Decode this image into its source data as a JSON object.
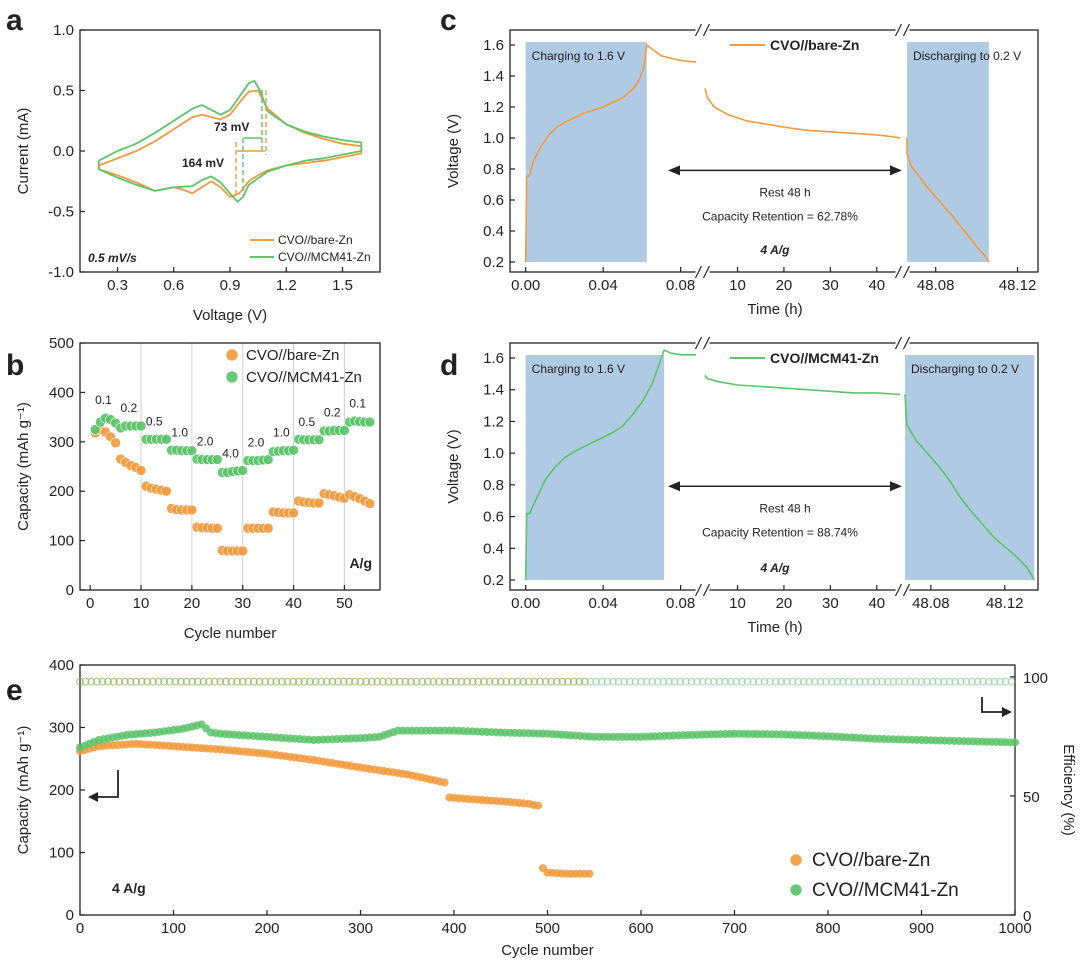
{
  "colors": {
    "orange": "#f39a3c",
    "green": "#5cc46a",
    "shade": "#a9c4e0",
    "axis": "#222222"
  },
  "panel_labels": {
    "a": "a",
    "b": "b",
    "c": "c",
    "d": "d",
    "e": "e"
  },
  "chart_data": [
    {
      "panel": "a",
      "type": "line",
      "xlabel": "Voltage (V)",
      "ylabel": "Current (mA)",
      "xlim": [
        0.1,
        1.7
      ],
      "ylim": [
        -1.0,
        1.0
      ],
      "xticks": [
        "0.3",
        "0.6",
        "0.9",
        "1.2",
        "1.5"
      ],
      "yticks": [
        "-1.0",
        "-0.5",
        "0.0",
        "0.5",
        "1.0"
      ],
      "annotations": [
        "73 mV",
        "164 mV",
        "0.5 mV/s"
      ],
      "legend_position": "bottom-right",
      "series": [
        {
          "name": "CVO//bare-Zn",
          "color": "orange",
          "x": [
            0.2,
            0.3,
            0.4,
            0.5,
            0.6,
            0.7,
            0.75,
            0.8,
            0.85,
            0.9,
            0.95,
            1.0,
            1.05,
            1.1,
            1.2,
            1.3,
            1.4,
            1.5,
            1.6,
            1.6,
            1.5,
            1.4,
            1.3,
            1.2,
            1.1,
            1.05,
            1.0,
            0.95,
            0.9,
            0.85,
            0.8,
            0.75,
            0.7,
            0.65,
            0.6,
            0.5,
            0.4,
            0.3,
            0.2
          ],
          "y": [
            -0.12,
            -0.06,
            0.0,
            0.08,
            0.18,
            0.28,
            0.3,
            0.28,
            0.26,
            0.3,
            0.4,
            0.49,
            0.5,
            0.35,
            0.22,
            0.15,
            0.1,
            0.06,
            0.04,
            -0.02,
            -0.05,
            -0.08,
            -0.1,
            -0.12,
            -0.16,
            -0.2,
            -0.25,
            -0.35,
            -0.38,
            -0.3,
            -0.25,
            -0.3,
            -0.35,
            -0.32,
            -0.3,
            -0.33,
            -0.26,
            -0.2,
            -0.15
          ]
        },
        {
          "name": "CVO//MCM41-Zn",
          "color": "green",
          "x": [
            0.2,
            0.3,
            0.4,
            0.5,
            0.6,
            0.7,
            0.75,
            0.8,
            0.85,
            0.9,
            0.95,
            1.0,
            1.03,
            1.06,
            1.1,
            1.2,
            1.3,
            1.4,
            1.5,
            1.6,
            1.6,
            1.5,
            1.4,
            1.3,
            1.2,
            1.1,
            1.0,
            0.97,
            0.94,
            0.9,
            0.85,
            0.8,
            0.75,
            0.7,
            0.6,
            0.5,
            0.4,
            0.3,
            0.2
          ],
          "y": [
            -0.08,
            0.0,
            0.06,
            0.15,
            0.25,
            0.35,
            0.38,
            0.34,
            0.3,
            0.34,
            0.45,
            0.56,
            0.58,
            0.5,
            0.33,
            0.22,
            0.16,
            0.12,
            0.09,
            0.07,
            0.0,
            -0.03,
            -0.06,
            -0.08,
            -0.12,
            -0.17,
            -0.28,
            -0.38,
            -0.42,
            -0.35,
            -0.26,
            -0.21,
            -0.24,
            -0.29,
            -0.3,
            -0.33,
            -0.28,
            -0.22,
            -0.15
          ]
        }
      ]
    },
    {
      "panel": "b",
      "type": "scatter",
      "xlabel": "Cycle number",
      "ylabel": "Capacity (mAh g⁻¹)",
      "xlim": [
        -2,
        57
      ],
      "ylim": [
        0,
        500
      ],
      "xticks": [
        "0",
        "10",
        "20",
        "30",
        "40",
        "50"
      ],
      "yticks": [
        "0",
        "100",
        "200",
        "300",
        "400",
        "500"
      ],
      "unit_label": "A/g",
      "rate_labels": [
        "0.1",
        "0.2",
        "0.5",
        "1.0",
        "2.0",
        "4.0",
        "2.0",
        "1.0",
        "0.5",
        "0.2",
        "0.1"
      ],
      "legend_position": "top-right",
      "series": [
        {
          "name": "CVO//bare-Zn",
          "color": "orange",
          "x": [
            1,
            2,
            3,
            4,
            5,
            6,
            7,
            8,
            9,
            10,
            11,
            12,
            13,
            14,
            15,
            16,
            17,
            18,
            19,
            20,
            21,
            22,
            23,
            24,
            25,
            26,
            27,
            28,
            29,
            30,
            31,
            32,
            33,
            34,
            35,
            36,
            37,
            38,
            39,
            40,
            41,
            42,
            43,
            44,
            45,
            46,
            47,
            48,
            49,
            50,
            51,
            52,
            53,
            54,
            55
          ],
          "y": [
            318,
            325,
            320,
            310,
            298,
            265,
            258,
            252,
            248,
            242,
            210,
            206,
            204,
            202,
            200,
            165,
            163,
            162,
            162,
            162,
            127,
            126,
            126,
            125,
            125,
            80,
            79,
            79,
            79,
            79,
            125,
            125,
            125,
            125,
            125,
            158,
            157,
            156,
            156,
            156,
            180,
            178,
            177,
            176,
            176,
            195,
            193,
            191,
            188,
            186,
            193,
            189,
            185,
            180,
            175
          ]
        },
        {
          "name": "CVO//MCM41-Zn",
          "color": "green",
          "x": [
            1,
            2,
            3,
            4,
            5,
            6,
            7,
            8,
            9,
            10,
            11,
            12,
            13,
            14,
            15,
            16,
            17,
            18,
            19,
            20,
            21,
            22,
            23,
            24,
            25,
            26,
            27,
            28,
            29,
            30,
            31,
            32,
            33,
            34,
            35,
            36,
            37,
            38,
            39,
            40,
            41,
            42,
            43,
            44,
            45,
            46,
            47,
            48,
            49,
            50,
            51,
            52,
            53,
            54,
            55
          ],
          "y": [
            325,
            340,
            348,
            345,
            338,
            328,
            332,
            332,
            332,
            332,
            305,
            305,
            305,
            305,
            305,
            283,
            283,
            282,
            282,
            282,
            265,
            264,
            264,
            264,
            264,
            238,
            238,
            240,
            241,
            242,
            262,
            262,
            262,
            263,
            264,
            280,
            281,
            282,
            282,
            283,
            305,
            304,
            304,
            304,
            304,
            322,
            322,
            323,
            323,
            323,
            340,
            342,
            341,
            340,
            340
          ]
        }
      ]
    },
    {
      "panel": "c",
      "type": "line",
      "xlabel": "Time (h)",
      "ylabel": "Voltage (V)",
      "ylim": [
        0.2,
        1.6
      ],
      "yticks": [
        "0.2",
        "0.4",
        "0.6",
        "0.8",
        "1.0",
        "1.2",
        "1.4",
        "1.6"
      ],
      "x_segments": [
        {
          "range": [
            -0.005,
            0.09
          ],
          "ticks": [
            "0.00",
            "0.04",
            "0.08"
          ],
          "shade": [
            0,
            0.0625
          ],
          "shade_label": "Charging to 1.6 V"
        },
        {
          "range": [
            3,
            45
          ],
          "ticks": [
            "10",
            "20",
            "30",
            "40"
          ]
        },
        {
          "range": [
            48.065,
            48.13
          ],
          "ticks": [
            "48.08",
            "48.12"
          ],
          "shade": [
            48.066,
            48.106
          ],
          "shade_label": "Discharging to 0.2 V"
        }
      ],
      "annotations": [
        "Rest 48 h",
        "Capacity Retention = 62.78%",
        "4 A/g"
      ],
      "series": [
        {
          "name": "CVO//bare-Zn",
          "color": "orange",
          "segments": [
            {
              "x": [
                0,
                0.0005,
                0.002,
                0.004,
                0.008,
                0.012,
                0.016,
                0.02,
                0.025,
                0.03,
                0.035,
                0.04,
                0.045,
                0.05,
                0.055,
                0.058,
                0.061,
                0.0625,
                0.07,
                0.08,
                0.088
              ],
              "y": [
                0.2,
                0.75,
                0.76,
                0.85,
                0.95,
                1.02,
                1.07,
                1.1,
                1.13,
                1.16,
                1.18,
                1.2,
                1.23,
                1.26,
                1.31,
                1.36,
                1.45,
                1.6,
                1.53,
                1.5,
                1.49
              ]
            },
            {
              "x": [
                3,
                3.5,
                5,
                8,
                12,
                16,
                20,
                25,
                30,
                35,
                40,
                43,
                45
              ],
              "y": [
                1.32,
                1.26,
                1.2,
                1.15,
                1.11,
                1.09,
                1.07,
                1.05,
                1.04,
                1.03,
                1.02,
                1.01,
                1.0
              ]
            },
            {
              "x": [
                48.066,
                48.066,
                48.068,
                48.072,
                48.076,
                48.08,
                48.084,
                48.088,
                48.092,
                48.096,
                48.1,
                48.104,
                48.106
              ],
              "y": [
                1.0,
                0.9,
                0.82,
                0.75,
                0.68,
                0.62,
                0.56,
                0.5,
                0.43,
                0.37,
                0.3,
                0.24,
                0.2
              ]
            }
          ]
        }
      ]
    },
    {
      "panel": "d",
      "type": "line",
      "xlabel": "Time (h)",
      "ylabel": "Voltage (V)",
      "ylim": [
        0.2,
        1.6
      ],
      "yticks": [
        "0.2",
        "0.4",
        "0.6",
        "0.8",
        "1.0",
        "1.2",
        "1.4",
        "1.6"
      ],
      "x_segments": [
        {
          "range": [
            -0.005,
            0.09
          ],
          "ticks": [
            "0.00",
            "0.04",
            "0.08"
          ],
          "shade": [
            0,
            0.0715
          ],
          "shade_label": "Charging to 1.6 V"
        },
        {
          "range": [
            3,
            45
          ],
          "ticks": [
            "10",
            "20",
            "30",
            "40"
          ]
        },
        {
          "range": [
            48.066,
            48.138
          ],
          "ticks": [
            "48.08",
            "48.12"
          ],
          "shade": [
            48.066,
            48.136
          ],
          "shade_label": "Discharging to 0.2 V"
        }
      ],
      "annotations": [
        "Rest 48 h",
        "Capacity Retention = 88.74%",
        "4 A/g"
      ],
      "series": [
        {
          "name": "CVO//MCM41-Zn",
          "color": "green",
          "segments": [
            {
              "x": [
                0,
                0.0005,
                0.002,
                0.005,
                0.01,
                0.015,
                0.02,
                0.025,
                0.03,
                0.035,
                0.04,
                0.045,
                0.05,
                0.055,
                0.06,
                0.065,
                0.068,
                0.0715,
                0.075,
                0.08,
                0.088
              ],
              "y": [
                0.2,
                0.62,
                0.62,
                0.7,
                0.83,
                0.91,
                0.97,
                1.01,
                1.04,
                1.07,
                1.1,
                1.13,
                1.17,
                1.24,
                1.32,
                1.43,
                1.53,
                1.65,
                1.63,
                1.62,
                1.62
              ]
            },
            {
              "x": [
                3,
                3.5,
                6,
                10,
                15,
                20,
                25,
                30,
                35,
                40,
                45
              ],
              "y": [
                1.49,
                1.47,
                1.45,
                1.43,
                1.42,
                1.41,
                1.4,
                1.39,
                1.38,
                1.38,
                1.37
              ]
            },
            {
              "x": [
                48.066,
                48.067,
                48.072,
                48.078,
                48.084,
                48.09,
                48.096,
                48.102,
                48.108,
                48.114,
                48.12,
                48.126,
                48.132,
                48.136
              ],
              "y": [
                1.37,
                1.18,
                1.08,
                1.0,
                0.92,
                0.83,
                0.72,
                0.63,
                0.55,
                0.47,
                0.41,
                0.35,
                0.28,
                0.2
              ]
            }
          ]
        }
      ]
    },
    {
      "panel": "e",
      "type": "scatter",
      "xlabel": "Cycle number",
      "ylabel": "Capacity (mAh g⁻¹)",
      "y2label": "Efficiency (%)",
      "xlim": [
        0,
        1000
      ],
      "ylim": [
        0,
        400
      ],
      "y2lim": [
        0,
        105
      ],
      "xticks": [
        "0",
        "100",
        "200",
        "300",
        "400",
        "500",
        "600",
        "700",
        "800",
        "900",
        "1000"
      ],
      "yticks": [
        "0",
        "100",
        "200",
        "300",
        "400"
      ],
      "y2ticks": [
        "0",
        "50",
        "100"
      ],
      "unit_label": "4 A/g",
      "legend_position": "bottom-right",
      "series": [
        {
          "name": "CVO//bare-Zn",
          "color": "orange",
          "axis": "left",
          "x": [
            0,
            20,
            40,
            60,
            80,
            100,
            150,
            200,
            250,
            300,
            350,
            390,
            395,
            420,
            450,
            480,
            488,
            490,
            495,
            500,
            520,
            545
          ],
          "y": [
            262,
            270,
            272,
            274,
            272,
            270,
            265,
            258,
            248,
            236,
            225,
            212,
            188,
            185,
            182,
            178,
            175,
            175,
            75,
            68,
            66,
            66
          ]
        },
        {
          "name": "CVO//MCM41-Zn",
          "color": "green",
          "axis": "left",
          "x": [
            0,
            20,
            50,
            80,
            110,
            130,
            140,
            150,
            200,
            250,
            300,
            320,
            340,
            400,
            450,
            500,
            550,
            600,
            650,
            700,
            750,
            800,
            850,
            900,
            950,
            1000
          ],
          "y": [
            268,
            280,
            288,
            292,
            298,
            305,
            292,
            290,
            285,
            280,
            283,
            285,
            295,
            295,
            292,
            290,
            285,
            285,
            288,
            290,
            289,
            286,
            282,
            280,
            278,
            276
          ]
        },
        {
          "name": "CVO//bare-Zn",
          "color": "orange",
          "axis": "right",
          "label": "efficiency",
          "x": [
            0,
            100,
            200,
            300,
            400,
            480,
            540
          ],
          "y": [
            98,
            98,
            98,
            98,
            98,
            98,
            98
          ]
        },
        {
          "name": "CVO//MCM41-Zn",
          "color": "green",
          "axis": "right",
          "label": "efficiency",
          "x": [
            0,
            200,
            400,
            600,
            800,
            1000
          ],
          "y": [
            98,
            98,
            98,
            98,
            98,
            98
          ]
        }
      ]
    }
  ]
}
